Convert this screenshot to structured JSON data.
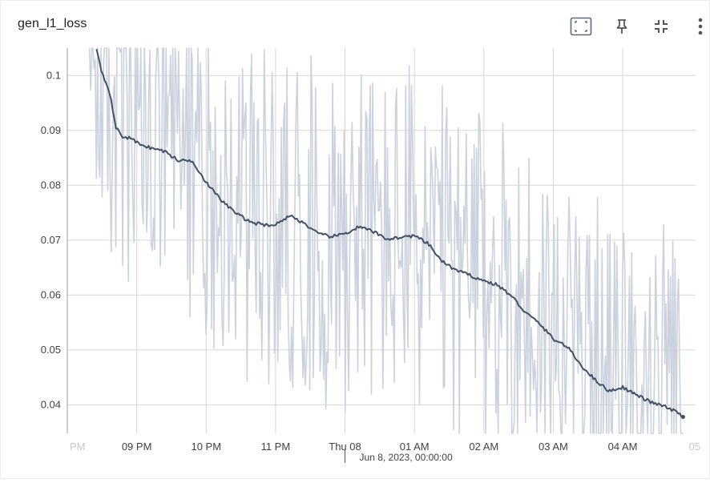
{
  "card": {
    "title": "gen_l1_loss"
  },
  "toolbar": {
    "items": [
      {
        "name": "fit-domain-icon",
        "tooltip": ""
      },
      {
        "name": "pin-icon",
        "tooltip": ""
      },
      {
        "name": "collapse-icon",
        "tooltip": ""
      },
      {
        "name": "more-vert-icon",
        "tooltip": ""
      }
    ]
  },
  "colors": {
    "raw_series": "#c8d0dc",
    "smoothed_series": "#425066",
    "grid": "#d6d6d6",
    "axis": "#9e9e9e",
    "label": "#424242",
    "icon": "#555555"
  },
  "chart_data": {
    "type": "line",
    "title": "gen_l1_loss",
    "xlabel": "",
    "ylabel": "",
    "ylim": [
      0.0348,
      0.105
    ],
    "x_ticks": [
      "PM",
      "09 PM",
      "10 PM",
      "11 PM",
      "Thu 08",
      "01 AM",
      "02 AM",
      "03 AM",
      "04 AM",
      "05"
    ],
    "x_tick_hours": [
      19.9,
      21,
      22,
      23,
      24,
      25,
      26,
      27,
      28,
      29
    ],
    "y_ticks": [
      0.04,
      0.05,
      0.06,
      0.07,
      0.08,
      0.09,
      0.1
    ],
    "y_tick_labels": [
      "0.04",
      "0.05",
      "0.06",
      "0.07",
      "0.08",
      "0.09",
      "0.1"
    ],
    "hover_label": "Jun 8, 2023, 00:00:00",
    "grid": true,
    "series": [
      {
        "x_hours": [
          20.42,
          20.5,
          20.6,
          20.7,
          20.8,
          20.9,
          21.0,
          21.2,
          21.4,
          21.6,
          21.8,
          22.0,
          22.2,
          22.4,
          22.6,
          22.8,
          23.0,
          23.2,
          23.4,
          23.6,
          23.8,
          24.0,
          24.2,
          24.4,
          24.6,
          24.8,
          25.0,
          25.2,
          25.4,
          25.6,
          25.8,
          26.0,
          26.2,
          26.4,
          26.6,
          26.8,
          27.0,
          27.2,
          27.4,
          27.6,
          27.8,
          28.0,
          28.2,
          28.4,
          28.6,
          28.8,
          28.87
        ],
        "values": [
          0.105,
          0.1005,
          0.0975,
          0.0905,
          0.0888,
          0.0886,
          0.0878,
          0.0868,
          0.0862,
          0.0845,
          0.0845,
          0.0805,
          0.0775,
          0.0752,
          0.0735,
          0.0728,
          0.0728,
          0.0745,
          0.0732,
          0.0712,
          0.0706,
          0.0712,
          0.0724,
          0.0716,
          0.0702,
          0.0705,
          0.0708,
          0.0693,
          0.0661,
          0.0645,
          0.0636,
          0.0626,
          0.0618,
          0.0598,
          0.0568,
          0.0548,
          0.052,
          0.0506,
          0.0472,
          0.0446,
          0.0425,
          0.0432,
          0.0418,
          0.0405,
          0.0397,
          0.0385,
          0.0378
        ]
      }
    ]
  }
}
